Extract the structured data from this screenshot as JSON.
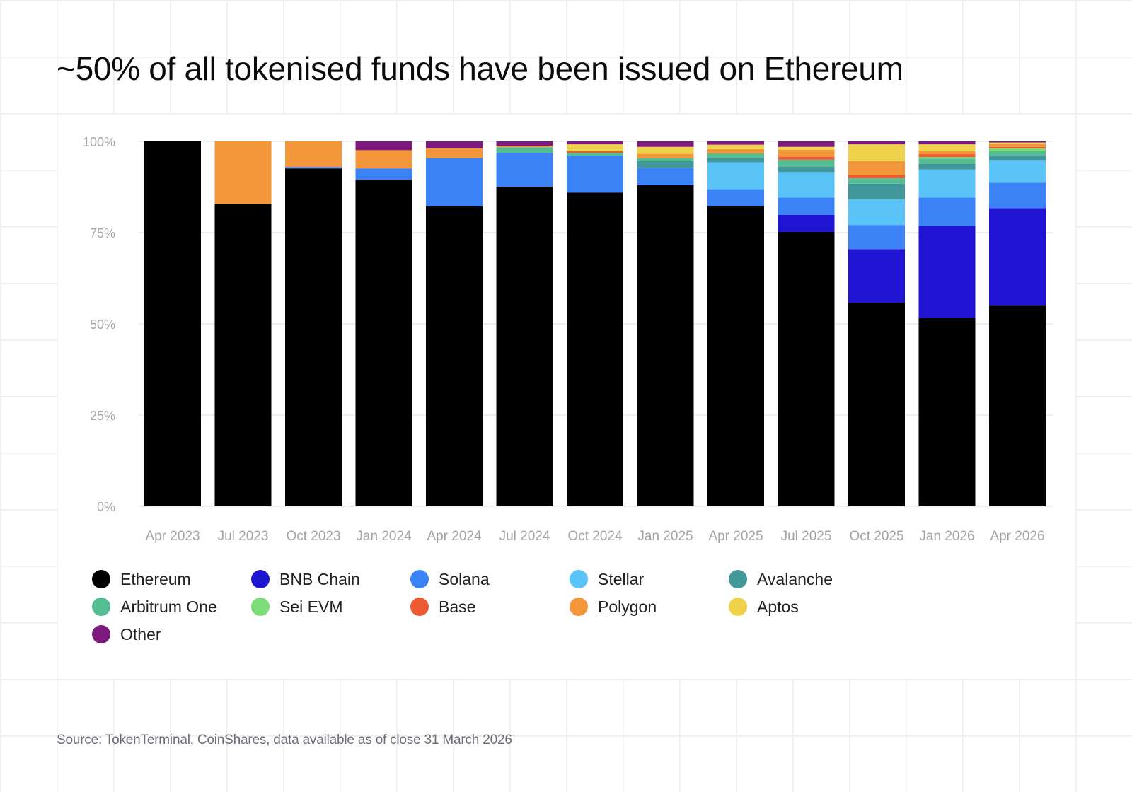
{
  "title": "~50% of all tokenised funds have been issued on Ethereum",
  "source": "Source: TokenTerminal, CoinShares, data available as of close 31 March 2026",
  "chart_data": {
    "type": "bar",
    "stacked": true,
    "title": "~50% of all tokenised funds have been issued on Ethereum",
    "xlabel": "",
    "ylabel": "",
    "ylim": [
      0,
      100
    ],
    "y_ticks": [
      0,
      25,
      50,
      75,
      100
    ],
    "y_tick_labels": [
      "0%",
      "25%",
      "50%",
      "75%",
      "100%"
    ],
    "grid": "horizontal",
    "legend_position": "bottom",
    "categories": [
      "Apr 2023",
      "Jul 2023",
      "Oct 2023",
      "Jan 2024",
      "Apr 2024",
      "Jul 2024",
      "Oct 2024",
      "Jan 2025",
      "Apr 2025",
      "Jul 2025",
      "Oct 2025",
      "Jan 2026",
      "Apr 2026"
    ],
    "series": [
      {
        "name": "Ethereum",
        "color": "#000000",
        "values": [
          100,
          82.9,
          92.6,
          89.5,
          82.2,
          87.6,
          86.0,
          88.0,
          82.2,
          75.2,
          55.8,
          51.6,
          55.0
        ]
      },
      {
        "name": "BNB Chain",
        "color": "#1f14d1",
        "values": [
          0,
          0,
          0,
          0,
          0,
          0,
          0,
          0,
          0,
          4.7,
          14.7,
          25.2,
          26.7
        ]
      },
      {
        "name": "Solana",
        "color": "#3b82f6",
        "values": [
          0,
          0,
          0.4,
          3.1,
          13.2,
          9.3,
          10.1,
          4.7,
          4.7,
          4.7,
          6.6,
          7.8,
          7.0
        ]
      },
      {
        "name": "Stellar",
        "color": "#5ac4f8",
        "values": [
          0,
          0,
          0,
          0,
          0,
          0,
          0,
          0,
          7.4,
          7.0,
          7.0,
          7.7,
          6.2
        ]
      },
      {
        "name": "Avalanche",
        "color": "#42979a",
        "values": [
          0,
          0,
          0,
          0,
          0,
          0,
          0,
          1.9,
          1.2,
          1.5,
          4.3,
          1.5,
          1.2
        ]
      },
      {
        "name": "Arbitrum One",
        "color": "#55bd92",
        "values": [
          0,
          0,
          0,
          0,
          0,
          1.5,
          0.8,
          0.8,
          1.2,
          1.9,
          1.5,
          1.5,
          1.2
        ]
      },
      {
        "name": "Sei EVM",
        "color": "#7cdc78",
        "values": [
          0,
          0,
          0,
          0,
          0,
          0,
          0,
          0,
          0,
          0,
          0,
          0.4,
          0.8
        ]
      },
      {
        "name": "Base",
        "color": "#eb5a30",
        "values": [
          0,
          0,
          0,
          0,
          0,
          0,
          0.4,
          0,
          0,
          0.8,
          0.8,
          0.8,
          0.4
        ]
      },
      {
        "name": "Polygon",
        "color": "#f4973a",
        "values": [
          0,
          17.1,
          7.0,
          5.0,
          2.7,
          0.4,
          0,
          1.2,
          1.2,
          1.9,
          3.9,
          0.8,
          0.8
        ]
      },
      {
        "name": "Aptos",
        "color": "#f0d24a",
        "values": [
          0,
          0,
          0,
          0,
          0,
          0,
          1.9,
          1.9,
          1.2,
          0.8,
          4.6,
          1.9,
          0.4
        ]
      },
      {
        "name": "Other",
        "color": "#7d1a7d",
        "values": [
          0,
          0,
          0,
          2.4,
          1.9,
          1.2,
          0.8,
          1.5,
          0.9,
          1.5,
          0.8,
          0.8,
          0.3
        ]
      }
    ]
  },
  "legend": [
    {
      "label": "Ethereum",
      "color": "#000000"
    },
    {
      "label": "BNB Chain",
      "color": "#1f14d1"
    },
    {
      "label": "Solana",
      "color": "#3b82f6"
    },
    {
      "label": "Stellar",
      "color": "#5ac4f8"
    },
    {
      "label": "Avalanche",
      "color": "#42979a"
    },
    {
      "label": "Arbitrum One",
      "color": "#55bd92"
    },
    {
      "label": "Sei EVM",
      "color": "#7cdc78"
    },
    {
      "label": "Base",
      "color": "#eb5a30"
    },
    {
      "label": "Polygon",
      "color": "#f4973a"
    },
    {
      "label": "Aptos",
      "color": "#f0d24a"
    },
    {
      "label": "Other",
      "color": "#7d1a7d"
    }
  ]
}
